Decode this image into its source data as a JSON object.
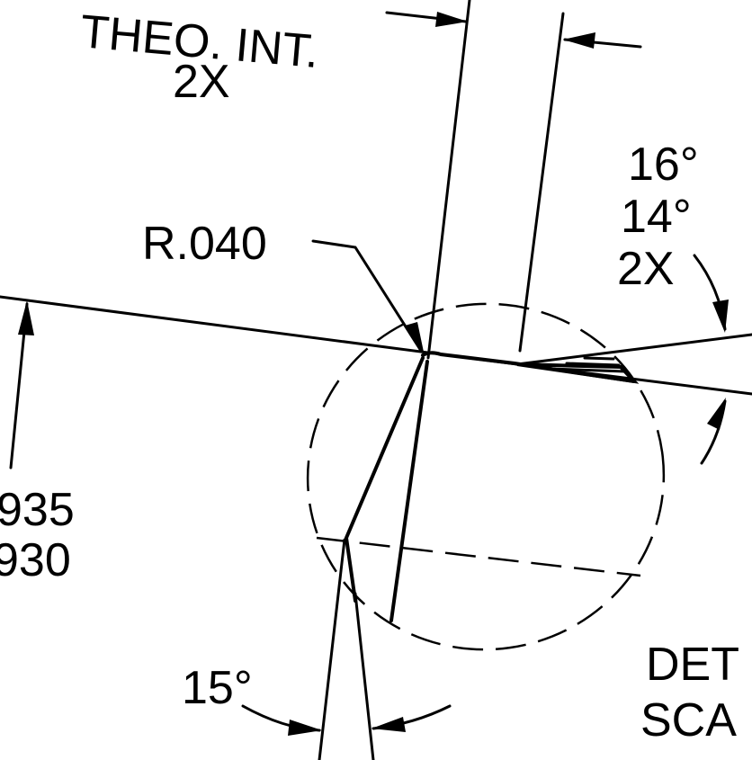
{
  "labels": {
    "theo_int": "THEO. INT.",
    "theo_int_qty": "2X",
    "radius": "R.040",
    "angle_upper": "16°",
    "angle_lower": "14°",
    "angle_qty": "2X",
    "dim_upper": "935",
    "dim_lower": "930",
    "angle_bottom": "15°",
    "detail": "DET",
    "scale": "SCA"
  }
}
